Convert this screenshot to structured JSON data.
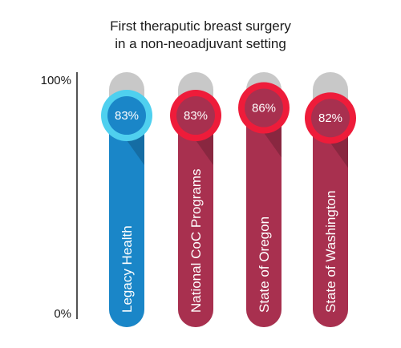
{
  "chart_data": {
    "type": "bar",
    "orientation": "vertical",
    "title_lines": [
      "First theraputic breast surgery",
      "in a non-neoadjuvant setting"
    ],
    "categories": [
      "Legacy Health",
      "National CoC Programs",
      "State of Oregon",
      "State of Washington"
    ],
    "values": [
      83,
      83,
      86,
      82
    ],
    "value_labels": [
      "83%",
      "83%",
      "86%",
      "82%"
    ],
    "ylim": [
      0,
      100
    ],
    "y_ticks": [
      "0%",
      "100%"
    ],
    "colors": [
      "#1a86c8",
      "#a8304f",
      "#a8304f",
      "#a8304f"
    ],
    "ring_colors": [
      "#4fd0ef",
      "#ee1c3a",
      "#ee1c3a",
      "#ee1c3a"
    ],
    "knob_colors": [
      "#1a86c8",
      "#a8304f",
      "#a8304f",
      "#a8304f"
    ],
    "track_color": "#c8c8c8",
    "grid": false,
    "legend": "none"
  }
}
